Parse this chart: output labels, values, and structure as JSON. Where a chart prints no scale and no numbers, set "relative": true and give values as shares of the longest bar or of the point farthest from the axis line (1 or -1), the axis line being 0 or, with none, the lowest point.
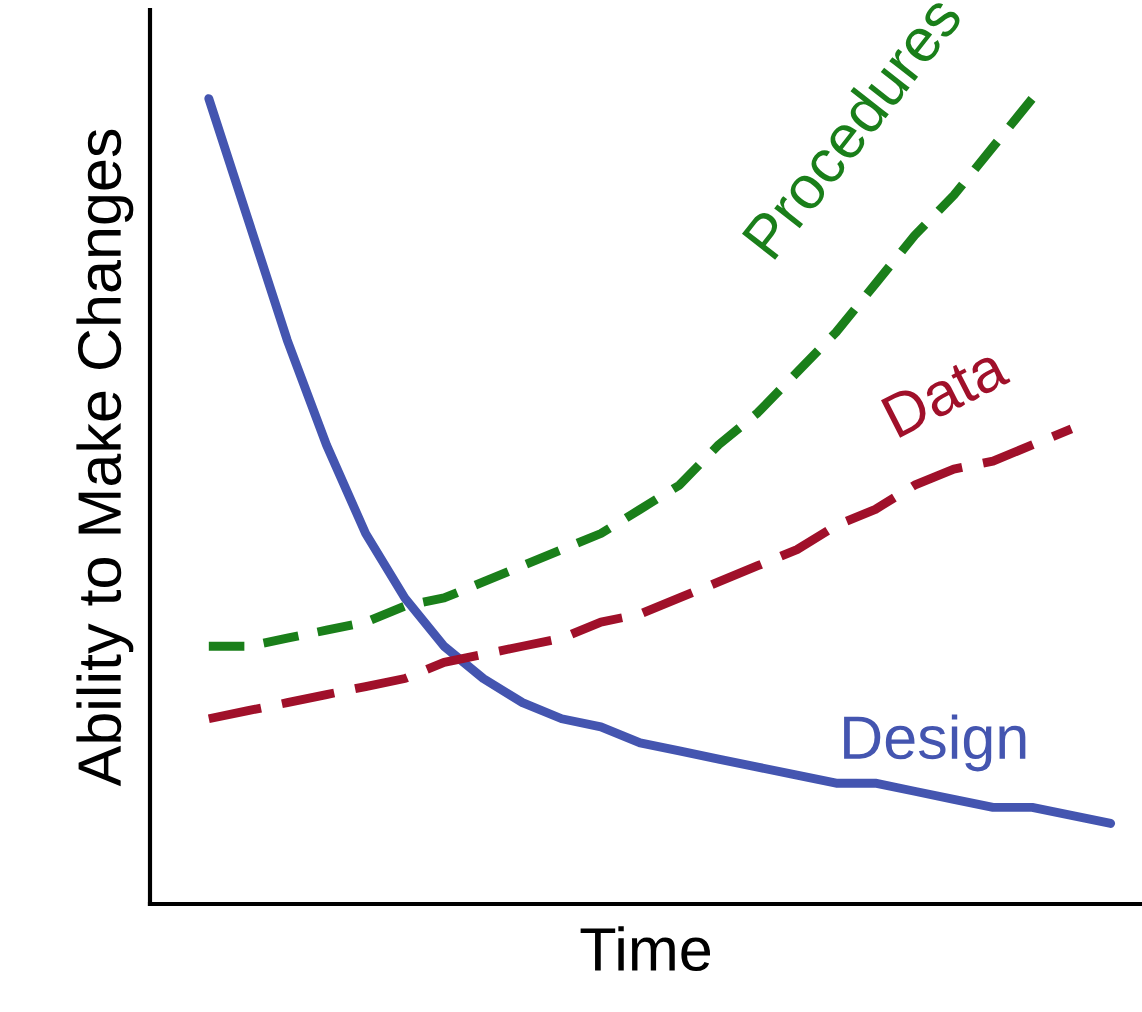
{
  "chart_data": {
    "type": "line",
    "relative": true,
    "xlabel": "Time",
    "ylabel": "Ability to Make Changes",
    "legend": false,
    "categories": [
      null,
      null,
      null,
      null,
      null,
      null,
      null,
      null,
      null,
      null,
      null,
      null,
      null,
      null,
      null,
      null,
      null,
      null,
      null,
      null,
      null,
      null,
      null,
      null
    ],
    "series": [
      {
        "name": "Design",
        "color": "#4455b0",
        "line_style": "solid",
        "values": [
          1.0,
          0.85,
          0.7,
          0.57,
          0.46,
          0.38,
          0.32,
          0.28,
          0.25,
          0.23,
          0.22,
          0.2,
          0.19,
          0.18,
          0.17,
          0.16,
          0.15,
          0.15,
          0.14,
          0.13,
          0.12,
          0.12,
          0.11,
          0.1
        ]
      },
      {
        "name": "Procedures",
        "color": "#1a7f1a",
        "line_style": "dashed",
        "values": [
          0.32,
          0.32,
          0.33,
          0.34,
          0.35,
          0.37,
          0.38,
          0.4,
          0.42,
          0.44,
          0.46,
          0.49,
          0.52,
          0.57,
          0.61,
          0.66,
          0.71,
          0.77,
          0.83,
          0.88,
          0.94,
          1.0,
          null,
          null
        ]
      },
      {
        "name": "Data",
        "color": "#a0102a",
        "line_style": "dashed",
        "values": [
          0.23,
          0.24,
          0.25,
          0.26,
          0.27,
          0.28,
          0.3,
          0.31,
          0.32,
          0.33,
          0.35,
          0.36,
          0.38,
          0.4,
          0.42,
          0.44,
          0.47,
          0.49,
          0.52,
          0.54,
          0.55,
          0.57,
          0.59,
          null
        ]
      }
    ]
  }
}
